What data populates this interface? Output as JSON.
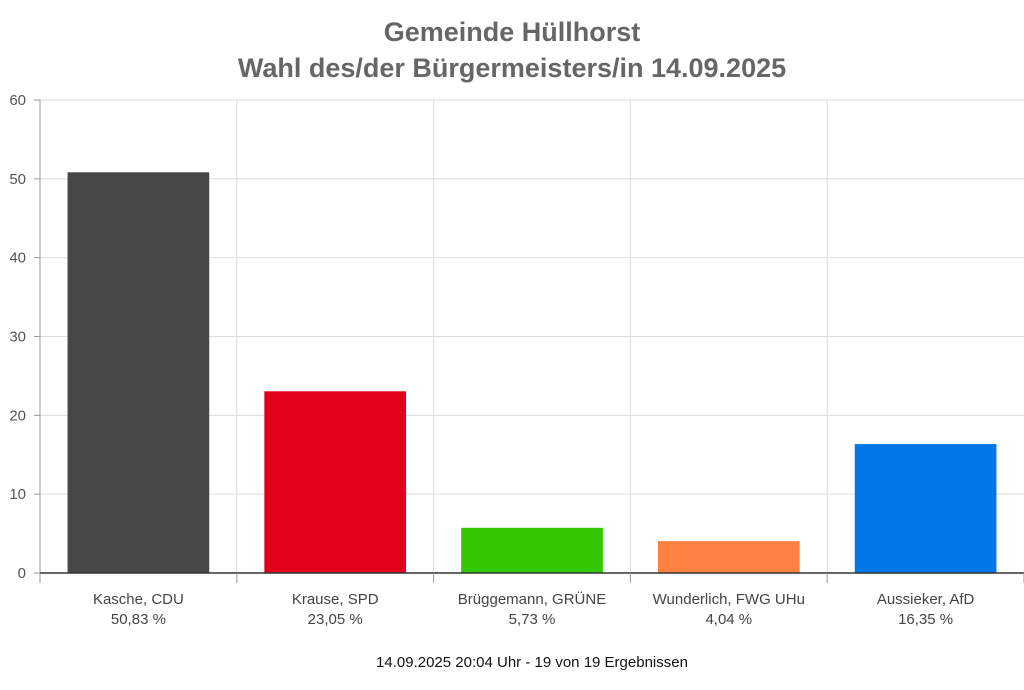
{
  "chart_data": {
    "type": "bar",
    "title": "Gemeinde Hüllhorst",
    "subtitle": "Wahl des/der Bürgermeisters/in 14.09.2025",
    "categories": [
      "Kasche, CDU",
      "Krause, SPD",
      "Brüggemann, GRÜNE",
      "Wunderlich, FWG UHu",
      "Aussieker, AfD"
    ],
    "value_labels": [
      "50,83 %",
      "23,05 %",
      "5,73 %",
      "4,04 %",
      "16,35 %"
    ],
    "values": [
      50.83,
      23.05,
      5.73,
      4.04,
      16.35
    ],
    "colors": [
      "#474747",
      "#e2001a",
      "#33c700",
      "#ff8040",
      "#0077e6"
    ],
    "ylim": [
      0,
      60
    ],
    "yticks": [
      "0",
      "10",
      "20",
      "30",
      "40",
      "50",
      "60"
    ],
    "grid": true,
    "footer": "14.09.2025 20:04 Uhr - 19 von 19 Ergebnissen"
  }
}
